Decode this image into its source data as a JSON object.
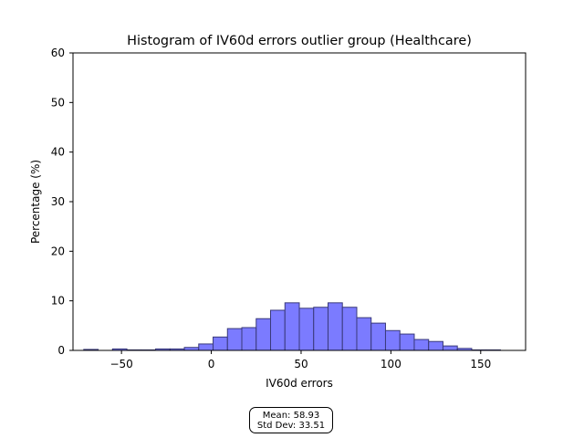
{
  "chart_data": {
    "type": "bar",
    "title": "Histogram of IV60d errors outlier group (Healthcare)",
    "xlabel": "IV60d errors",
    "ylabel": "Percentage (%)",
    "xlim": [
      -77,
      175
    ],
    "ylim": [
      0,
      60
    ],
    "xticks": [
      -50,
      0,
      50,
      100,
      150
    ],
    "yticks": [
      0,
      10,
      20,
      30,
      40,
      50,
      60
    ],
    "bar_color": "#7b7bff",
    "edge_color": "#3a3a7a",
    "bins": [
      {
        "x0": -71.0,
        "x1": -63.0,
        "value": 0.2
      },
      {
        "x0": -63.0,
        "x1": -55.0,
        "value": 0.0
      },
      {
        "x0": -55.0,
        "x1": -47.0,
        "value": 0.3
      },
      {
        "x0": -47.0,
        "x1": -39.0,
        "value": 0.1
      },
      {
        "x0": -39.0,
        "x1": -31.0,
        "value": 0.1
      },
      {
        "x0": -31.0,
        "x1": -23.0,
        "value": 0.3
      },
      {
        "x0": -23.0,
        "x1": -15.0,
        "value": 0.3
      },
      {
        "x0": -15.0,
        "x1": -7.0,
        "value": 0.6
      },
      {
        "x0": -7.0,
        "x1": 1.0,
        "value": 1.3
      },
      {
        "x0": 1.0,
        "x1": 9.0,
        "value": 2.7
      },
      {
        "x0": 9.0,
        "x1": 17.0,
        "value": 4.4
      },
      {
        "x0": 17.0,
        "x1": 25.0,
        "value": 4.6
      },
      {
        "x0": 25.0,
        "x1": 33.0,
        "value": 6.4
      },
      {
        "x0": 33.0,
        "x1": 41.0,
        "value": 8.1
      },
      {
        "x0": 41.0,
        "x1": 49.0,
        "value": 9.6
      },
      {
        "x0": 49.0,
        "x1": 57.0,
        "value": 8.5
      },
      {
        "x0": 57.0,
        "x1": 65.0,
        "value": 8.7
      },
      {
        "x0": 65.0,
        "x1": 73.0,
        "value": 9.6
      },
      {
        "x0": 73.0,
        "x1": 81.0,
        "value": 8.7
      },
      {
        "x0": 81.0,
        "x1": 89.0,
        "value": 6.6
      },
      {
        "x0": 89.0,
        "x1": 97.0,
        "value": 5.5
      },
      {
        "x0": 97.0,
        "x1": 105.0,
        "value": 4.0
      },
      {
        "x0": 105.0,
        "x1": 113.0,
        "value": 3.3
      },
      {
        "x0": 113.0,
        "x1": 121.0,
        "value": 2.2
      },
      {
        "x0": 121.0,
        "x1": 129.0,
        "value": 1.8
      },
      {
        "x0": 129.0,
        "x1": 137.0,
        "value": 0.9
      },
      {
        "x0": 137.0,
        "x1": 145.0,
        "value": 0.4
      },
      {
        "x0": 145.0,
        "x1": 153.0,
        "value": 0.1
      },
      {
        "x0": 153.0,
        "x1": 161.0,
        "value": 0.1
      },
      {
        "x0": 161.0,
        "x1": 169.0,
        "value": 0.0
      }
    ],
    "stats": {
      "mean_label": "Mean: 58.93",
      "std_label": "Std Dev: 33.51"
    }
  }
}
